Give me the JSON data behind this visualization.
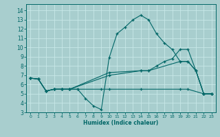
{
  "xlabel": "Humidex (Indice chaleur)",
  "xlim": [
    -0.5,
    23.5
  ],
  "ylim": [
    3,
    14.7
  ],
  "yticks": [
    3,
    4,
    5,
    6,
    7,
    8,
    9,
    10,
    11,
    12,
    13,
    14
  ],
  "xticks": [
    0,
    1,
    2,
    3,
    4,
    5,
    6,
    7,
    8,
    9,
    10,
    11,
    12,
    13,
    14,
    15,
    16,
    17,
    18,
    19,
    20,
    21,
    22,
    23
  ],
  "bg_color": "#a8cece",
  "line_color": "#006666",
  "grid_color": "#c8e8e8",
  "lines": [
    {
      "x": [
        0,
        1,
        2,
        3,
        4,
        5,
        6,
        7,
        8,
        9,
        10,
        11,
        12,
        13,
        14,
        15,
        16,
        17,
        18,
        19,
        20,
        21,
        22,
        23
      ],
      "y": [
        6.7,
        6.6,
        5.3,
        5.5,
        5.5,
        5.5,
        5.5,
        4.5,
        3.7,
        3.3,
        8.9,
        11.5,
        12.2,
        13.0,
        13.5,
        13.0,
        11.5,
        10.5,
        9.8,
        8.5,
        8.5,
        7.5,
        5.0,
        5.0
      ]
    },
    {
      "x": [
        0,
        1,
        2,
        3,
        4,
        5,
        10,
        14,
        15,
        16,
        17,
        18,
        19,
        20,
        21,
        22,
        23
      ],
      "y": [
        6.7,
        6.6,
        5.3,
        5.5,
        5.5,
        5.5,
        7.3,
        7.5,
        7.5,
        8.0,
        8.5,
        8.8,
        9.8,
        9.8,
        7.5,
        5.0,
        5.0
      ]
    },
    {
      "x": [
        0,
        1,
        2,
        3,
        4,
        5,
        10,
        14,
        15,
        19,
        20,
        21,
        22,
        23
      ],
      "y": [
        6.7,
        6.6,
        5.3,
        5.5,
        5.5,
        5.5,
        7.0,
        7.5,
        7.5,
        8.5,
        8.5,
        7.5,
        5.0,
        5.0
      ]
    },
    {
      "x": [
        0,
        1,
        2,
        3,
        4,
        5,
        6,
        9,
        10,
        14,
        19,
        20,
        22,
        23
      ],
      "y": [
        6.7,
        6.6,
        5.3,
        5.5,
        5.5,
        5.5,
        5.5,
        5.5,
        5.5,
        5.5,
        5.5,
        5.5,
        5.0,
        5.0
      ]
    }
  ]
}
